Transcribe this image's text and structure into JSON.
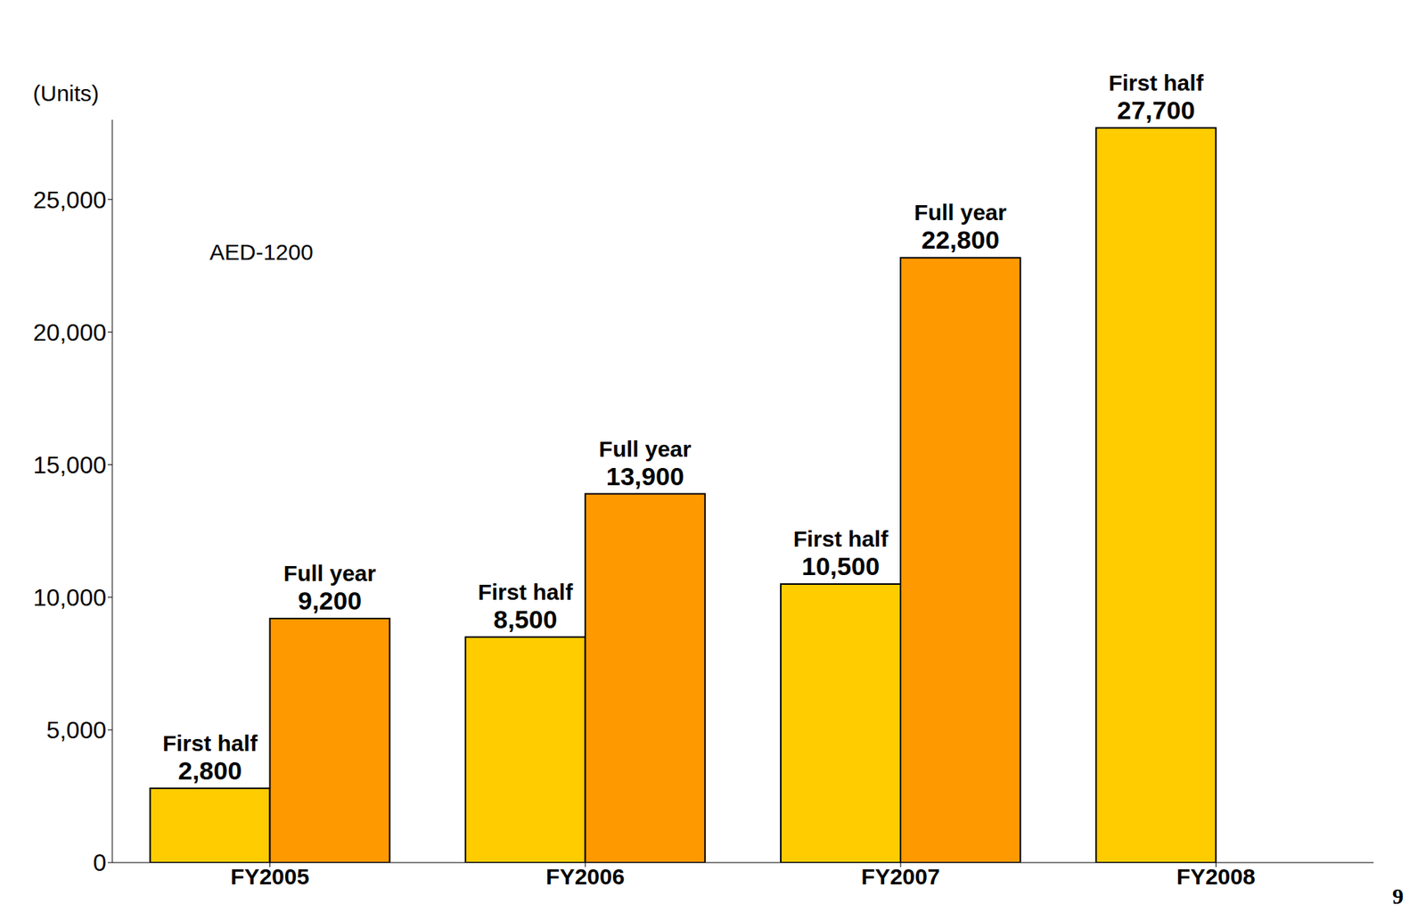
{
  "chart_data": {
    "type": "bar",
    "y_label": "(Units)",
    "categories": [
      "FY2005",
      "FY2006",
      "FY2007",
      "FY2008"
    ],
    "series": [
      {
        "name": "First half",
        "color": "#ffcc00",
        "values": [
          2800,
          8500,
          10500,
          27700
        ],
        "value_labels": [
          "2,800",
          "8,500",
          "10,500",
          "27,700"
        ]
      },
      {
        "name": "Full year",
        "color": "#ff9900",
        "values": [
          9200,
          13900,
          22800,
          null
        ],
        "value_labels": [
          "9,200",
          "13,900",
          "22,800",
          null
        ]
      }
    ],
    "ylim": [
      0,
      28000
    ],
    "yticks": [
      0,
      {
        "value": 5000,
        "label": "5,000"
      },
      {
        "value": 10000,
        "label": "10,000"
      },
      {
        "value": 15000,
        "label": "15,000"
      },
      {
        "value": 20000,
        "label": "20,000"
      },
      {
        "value": 25000,
        "label": "25,000"
      }
    ],
    "grid": false,
    "data_labels": true,
    "annotations": [
      "AED-1200",
      "9"
    ]
  }
}
